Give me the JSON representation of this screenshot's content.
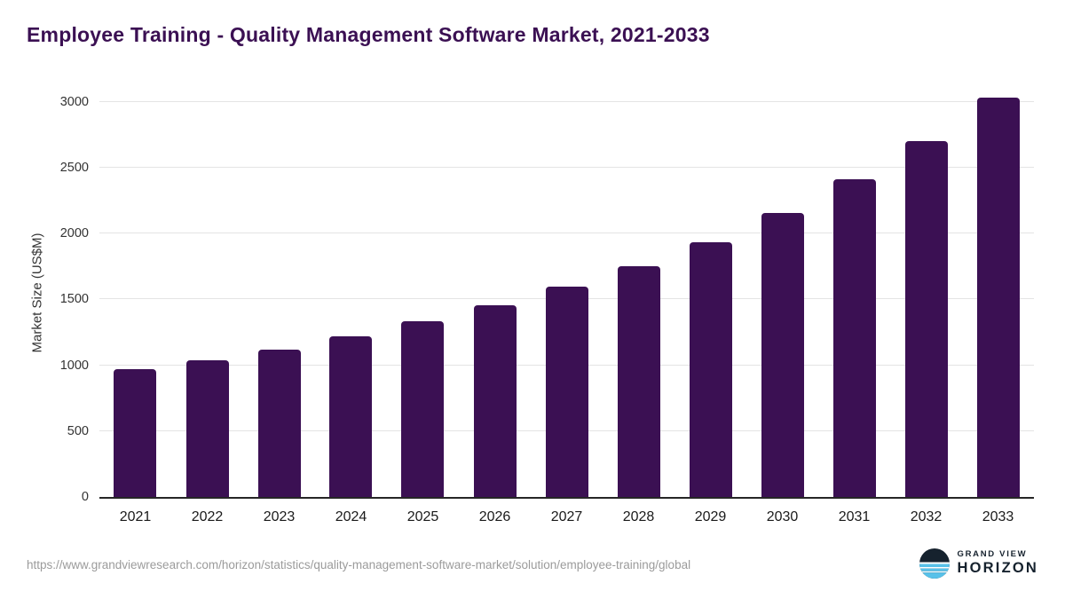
{
  "chart_data": {
    "type": "bar",
    "title": "Employee Training - Quality Management Software Market, 2021-2033",
    "categories": [
      "2021",
      "2022",
      "2023",
      "2024",
      "2025",
      "2026",
      "2027",
      "2028",
      "2029",
      "2030",
      "2031",
      "2032",
      "2033"
    ],
    "values": [
      970,
      1040,
      1120,
      1220,
      1335,
      1455,
      1595,
      1755,
      1935,
      2155,
      2410,
      2700,
      3035
    ],
    "xlabel": "",
    "ylabel": "Market Size (US$M)",
    "ylim": [
      0,
      3100
    ],
    "yticks": [
      0,
      500,
      1000,
      1500,
      2000,
      2500,
      3000
    ],
    "bar_color": "#3b1053",
    "grid": true,
    "legend": false
  },
  "footer": {
    "source_url": "https://www.grandviewresearch.com/horizon/statistics/quality-management-software-market/solution/employee-training/global",
    "logo": {
      "line1": "GRAND VIEW",
      "line2": "HORIZON"
    }
  },
  "colors": {
    "title": "#3b1053",
    "bar": "#3b1053",
    "gridline": "#e4e4e4",
    "axis_text": "#333333",
    "footer_text": "#9b9b9b",
    "logo_dark": "#16222e",
    "logo_blue": "#57c1e9"
  }
}
